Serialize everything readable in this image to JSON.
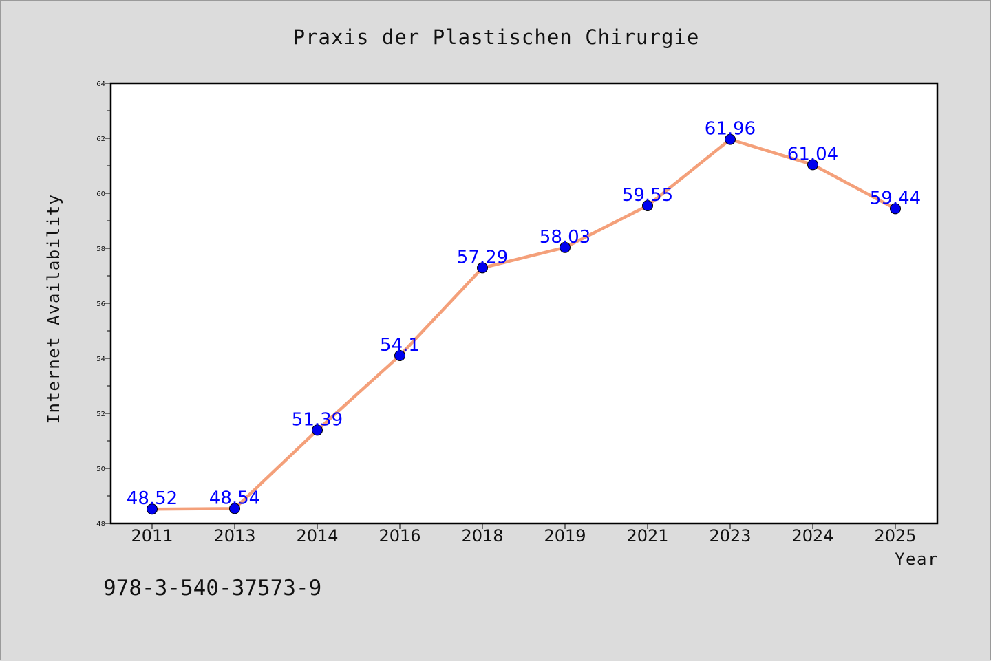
{
  "chart_data": {
    "type": "line",
    "title": "Praxis der Plastischen Chirurgie",
    "xlabel": "Year",
    "ylabel": "Internet Availability",
    "categories": [
      "2011",
      "2013",
      "2014",
      "2016",
      "2018",
      "2019",
      "2021",
      "2023",
      "2024",
      "2025"
    ],
    "series": [
      {
        "values": [
          48.52,
          48.54,
          51.39,
          54.1,
          57.29,
          58.03,
          59.55,
          61.96,
          61.04,
          59.44
        ],
        "data_labels": [
          "48.52",
          "48.54",
          "51.39",
          "54.1",
          "57.29",
          "58.03",
          "59.55",
          "61.96",
          "61.04",
          "59.44"
        ],
        "line_color": "#f4a07a",
        "marker_color": "#0000ee",
        "label_color": "#0000ff"
      }
    ],
    "ylim": [
      48,
      64
    ],
    "yticks": [
      "48",
      "50",
      "52",
      "54",
      "56",
      "58",
      "60",
      "62",
      "64"
    ],
    "grid": false,
    "legend": "none"
  },
  "footer": {
    "isbn": "978-3-540-37573-9"
  },
  "colors": {
    "background": "#dcdcdc",
    "plot_background": "#ffffff"
  }
}
